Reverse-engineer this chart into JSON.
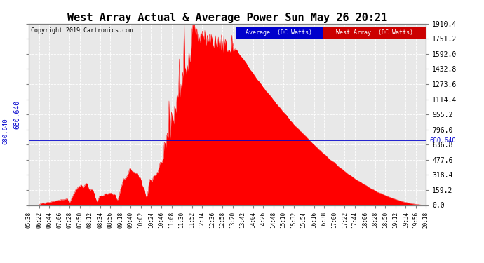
{
  "title": "West Array Actual & Average Power Sun May 26 20:21",
  "copyright": "Copyright 2019 Cartronics.com",
  "average_value": 680.64,
  "average_label": "680.640",
  "ymax": 1910.4,
  "ymin": 0.0,
  "yticks": [
    0.0,
    159.2,
    318.4,
    477.6,
    636.8,
    796.0,
    955.2,
    1114.4,
    1273.6,
    1432.8,
    1592.0,
    1751.2,
    1910.4
  ],
  "ytick_labels": [
    "0.0",
    "159.2",
    "318.4",
    "477.6",
    "636.8",
    "796.0",
    "955.2",
    "1114.4",
    "1273.6",
    "1432.8",
    "1592.0",
    "1751.2",
    "1910.4"
  ],
  "fig_bg_color": "#ffffff",
  "plot_bg_color": "#e8e8e8",
  "grid_color": "#ffffff",
  "red_color": "#FF0000",
  "blue_color": "#0000CC",
  "text_color": "#000000",
  "legend_blue_bg": "#0000CC",
  "legend_red_bg": "#CC0000",
  "legend_blue_label": "Average  (DC Watts)",
  "legend_red_label": "West Array  (DC Watts)",
  "xtick_labels": [
    "05:38",
    "06:22",
    "06:44",
    "07:06",
    "07:28",
    "07:50",
    "08:12",
    "08:34",
    "08:56",
    "09:18",
    "09:40",
    "10:02",
    "10:24",
    "10:46",
    "11:08",
    "11:30",
    "11:52",
    "12:14",
    "12:36",
    "12:58",
    "13:20",
    "13:42",
    "14:04",
    "14:26",
    "14:48",
    "15:10",
    "15:32",
    "15:54",
    "16:16",
    "16:38",
    "17:00",
    "17:22",
    "17:44",
    "18:06",
    "18:28",
    "18:50",
    "19:12",
    "19:34",
    "19:56",
    "20:18"
  ]
}
